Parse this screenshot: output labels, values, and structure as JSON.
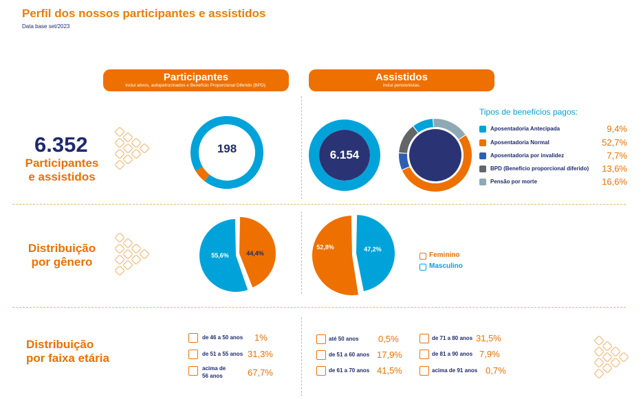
{
  "header": {
    "title": "Perfil dos nossos participantes e assistidos",
    "subtitle": "Data base set/2023"
  },
  "participantes_header": {
    "title": "Participantes",
    "subtitle": "inclui ativos, autopatrocinados e Benefício Proporcional Diferido (BPD)."
  },
  "assistidos_header": {
    "title": "Assistidos",
    "subtitle": "inclui pensionistas."
  },
  "total": {
    "number": "6.352",
    "label_line1": "Participantes",
    "label_line2": "e assistidos"
  },
  "genero_label": {
    "line1": "Distribuição",
    "line2": "por gênero"
  },
  "faixa_label": {
    "line1": "Distribuição",
    "line2": "por faixa etária"
  },
  "legend_title": "Tipos de benefícios pagos:",
  "colors": {
    "orange": "#ee7000",
    "cyan": "#00a3d9",
    "navy": "#2a3474",
    "blue": "#2f5fb0",
    "gray": "#636669",
    "lightgray": "#8ea9b4"
  },
  "chart_data": [
    {
      "type": "pie",
      "name": "participantes-total-donut",
      "center_label": "198",
      "values": [
        94,
        6
      ],
      "colors": [
        "#00a3d9",
        "#ee7000"
      ]
    },
    {
      "type": "pie",
      "name": "assistidos-total-donut",
      "center_label": "6.154",
      "values": [
        100
      ],
      "colors": [
        "#00a3d9"
      ]
    },
    {
      "type": "pie",
      "name": "tipos-beneficios-donut",
      "title": "Tipos de benefícios pagos:",
      "categories": [
        "Aposentadoria Antecipada",
        "Aposentadoria Normal",
        "Aposentadoria por invalidez",
        "BPD (Benefício proporcional diferido)",
        "Pensão por morte"
      ],
      "values": [
        9.4,
        52.7,
        7.7,
        13.6,
        16.6
      ],
      "labels": [
        "9,4%",
        "52,7%",
        "7,7%",
        "13,6%",
        "16,6%"
      ],
      "colors": [
        "#00a3d9",
        "#ee7000",
        "#2f5fb0",
        "#636669",
        "#8ea9b4"
      ],
      "slice_order": [
        4,
        1,
        2,
        3,
        0
      ]
    },
    {
      "type": "pie",
      "name": "participantes-genero",
      "categories": [
        "Feminino",
        "Masculino"
      ],
      "values": [
        44.4,
        55.6
      ],
      "labels": [
        "44,4%",
        "55,6%"
      ],
      "colors": [
        "#ee7000",
        "#00a3d9"
      ]
    },
    {
      "type": "pie",
      "name": "assistidos-genero",
      "categories": [
        "Masculino",
        "Feminino"
      ],
      "values": [
        47.2,
        52.8
      ],
      "labels": [
        "47,2%",
        "52,8%"
      ],
      "colors": [
        "#00a3d9",
        "#ee7000"
      ]
    },
    {
      "type": "table",
      "name": "participantes-faixa-etaria",
      "rows": [
        {
          "label": "de 46 a 50 anos",
          "value": "1%"
        },
        {
          "label": "de 51 a 55 anos",
          "value": "31,3%"
        },
        {
          "label_line1": "acima de",
          "label_line2": "56 anos",
          "value": "67,7%"
        }
      ]
    },
    {
      "type": "table",
      "name": "assistidos-faixa-etaria",
      "rows": [
        {
          "label": "até 50 anos",
          "value": "0,5%"
        },
        {
          "label": "de  51 a 60 anos",
          "value": "17,9%"
        },
        {
          "label": "de 61 a 70 anos",
          "value": "41,5%"
        },
        {
          "label": "de 71 a 80 anos",
          "value": "31,5%"
        },
        {
          "label": "de 81 a 90 anos",
          "value": "7,9%"
        },
        {
          "label": "acima de 91 anos",
          "value": "0,7%"
        }
      ]
    }
  ],
  "gender_legend": {
    "feminino": "Feminino",
    "masculino": "Masculino"
  }
}
